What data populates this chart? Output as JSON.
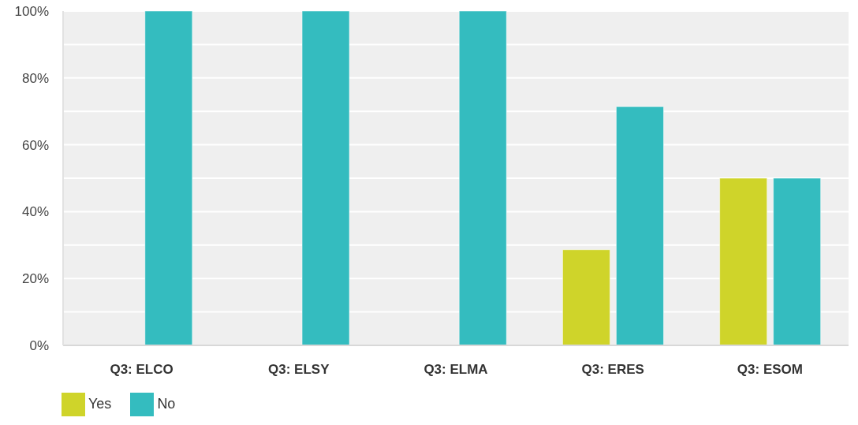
{
  "chart_data": {
    "type": "bar",
    "categories": [
      "Q3: ELCO",
      "Q3: ELSY",
      "Q3: ELMA",
      "Q3: ERES",
      "Q3: ESOM"
    ],
    "series": [
      {
        "name": "Yes",
        "color": "#cfd42a",
        "values": [
          0,
          0,
          0,
          28.6,
          50
        ]
      },
      {
        "name": "No",
        "color": "#34bcbf",
        "values": [
          100,
          100,
          100,
          71.4,
          50
        ]
      }
    ],
    "ylim": [
      0,
      100
    ],
    "yticks": [
      {
        "value": 0,
        "label": "0%"
      },
      {
        "value": 10,
        "label": null
      },
      {
        "value": 20,
        "label": "20%"
      },
      {
        "value": 30,
        "label": null
      },
      {
        "value": 40,
        "label": "40%"
      },
      {
        "value": 50,
        "label": null
      },
      {
        "value": 60,
        "label": "60%"
      },
      {
        "value": 70,
        "label": null
      },
      {
        "value": 80,
        "label": "80%"
      },
      {
        "value": 90,
        "label": null
      },
      {
        "value": 100,
        "label": "100%"
      }
    ],
    "grid": "y",
    "legend": "bottom left"
  }
}
